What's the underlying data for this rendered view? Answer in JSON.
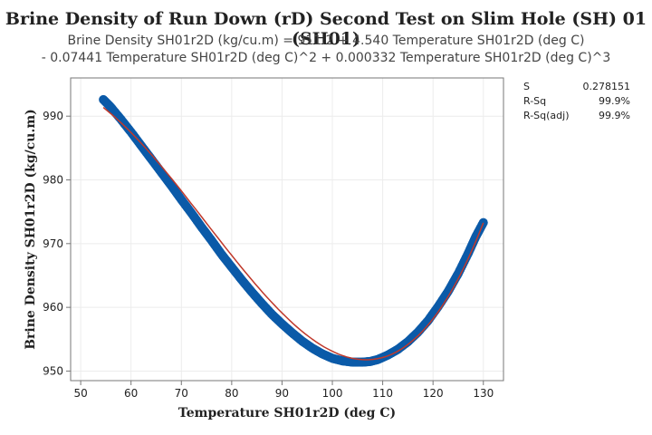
{
  "title": "Brine Density of Run Down (rD) Second Test on Slim Hole (SH) 01 (SH01)",
  "equation_line1": "Brine Density SH01r2D (kg/cu.m) = 911.2 + 4.540 Temperature SH01r2D (deg C)",
  "equation_line2": "- 0.07441 Temperature SH01r2D (deg C)^2 + 0.000332 Temperature SH01r2D (deg C)^3",
  "stats": [
    {
      "label": "S",
      "value": "0.278151"
    },
    {
      "label": "R-Sq",
      "value": "99.9%"
    },
    {
      "label": "R-Sq(adj)",
      "value": "99.9%"
    }
  ],
  "colors": {
    "series": "#0b5aa8",
    "fit": "#c0392b",
    "grid": "#ececec",
    "frame": "#777777"
  },
  "chart_data": {
    "type": "scatter",
    "xlabel": "Temperature SH01r2D (deg C)",
    "ylabel": "Brine Density SH01r2D (kg/cu.m)",
    "xlim": [
      48,
      134
    ],
    "ylim": [
      948.5,
      996
    ],
    "xticks": [
      50,
      60,
      70,
      80,
      90,
      100,
      110,
      120,
      130
    ],
    "yticks": [
      950,
      960,
      970,
      980,
      990
    ],
    "grid": true,
    "fit": {
      "b0": 911.2,
      "b1": 4.54,
      "b2": -0.07441,
      "b3": 0.000332
    },
    "series": [
      {
        "x": [
          54.5,
          56,
          58,
          60,
          62,
          64,
          66,
          68,
          70,
          72,
          74,
          76,
          78,
          80,
          82,
          84,
          86,
          88,
          90,
          92,
          94,
          96,
          98,
          100,
          102,
          104,
          106,
          107.5,
          109,
          111,
          113,
          115,
          117,
          119,
          121,
          123,
          125,
          127,
          128.5,
          130
        ],
        "y": [
          992.6,
          991.4,
          989.5,
          987.5,
          985.4,
          983.3,
          981.2,
          979.1,
          976.9,
          974.8,
          972.6,
          970.5,
          968.3,
          966.3,
          964.3,
          962.4,
          960.6,
          958.9,
          957.4,
          956.0,
          954.7,
          953.6,
          952.7,
          952.0,
          951.6,
          951.4,
          951.4,
          951.5,
          951.8,
          952.5,
          953.4,
          954.6,
          956.1,
          957.9,
          960.1,
          962.5,
          965.3,
          968.5,
          971.1,
          973.3
        ]
      }
    ]
  }
}
